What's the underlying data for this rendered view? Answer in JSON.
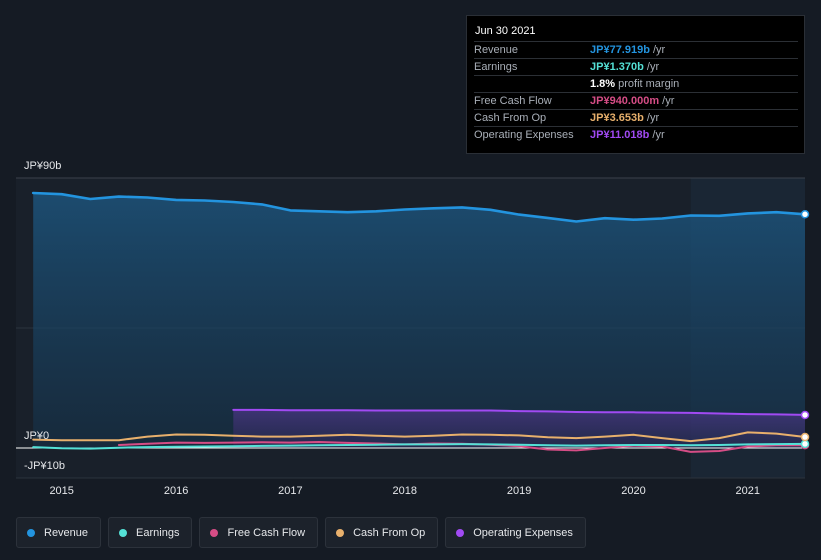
{
  "tooltip": {
    "date": "Jun 30 2021",
    "rows": [
      {
        "label": "Revenue",
        "value": "JP¥77.919b",
        "unit": " /yr",
        "color": "#2394df"
      },
      {
        "label": "Earnings",
        "value": "JP¥1.370b",
        "unit": " /yr",
        "color": "#54e1d6"
      },
      {
        "label": "",
        "value": "1.8%",
        "unit": " profit margin",
        "color": "#ffffff"
      },
      {
        "label": "Free Cash Flow",
        "value": "JP¥940.000m",
        "unit": " /yr",
        "color": "#d64d86"
      },
      {
        "label": "Cash From Op",
        "value": "JP¥3.653b",
        "unit": " /yr",
        "color": "#e8b06c"
      },
      {
        "label": "Operating Expenses",
        "value": "JP¥11.018b",
        "unit": " /yr",
        "color": "#a14af3"
      }
    ]
  },
  "axis": {
    "y_top_label": "JP¥90b",
    "y_zero_label": "JP¥0",
    "y_bottom_label": "-JP¥10b"
  },
  "legend": [
    {
      "label": "Revenue",
      "color": "#2394df"
    },
    {
      "label": "Earnings",
      "color": "#54e1d6"
    },
    {
      "label": "Free Cash Flow",
      "color": "#d64d86"
    },
    {
      "label": "Cash From Op",
      "color": "#e8b06c"
    },
    {
      "label": "Operating Expenses",
      "color": "#a14af3"
    }
  ],
  "chart_data": {
    "type": "area",
    "ylim": [
      -10,
      90
    ],
    "y_unit": "JP¥ billions",
    "xlim": [
      2014.6,
      2021.5
    ],
    "x_ticks": [
      "2015",
      "2016",
      "2017",
      "2018",
      "2019",
      "2020",
      "2021"
    ],
    "highlight_from": 2020.5,
    "series": [
      {
        "name": "Revenue",
        "color": "#2394df",
        "fill": true,
        "x": [
          2014.75,
          2015.0,
          2015.25,
          2015.5,
          2015.75,
          2016.0,
          2016.25,
          2016.5,
          2016.75,
          2017.0,
          2017.25,
          2017.5,
          2017.75,
          2018.0,
          2018.25,
          2018.5,
          2018.75,
          2019.0,
          2019.25,
          2019.5,
          2019.75,
          2020.0,
          2020.25,
          2020.5,
          2020.75,
          2021.0,
          2021.25,
          2021.5
        ],
        "y": [
          85.0,
          84.6,
          83.0,
          83.8,
          83.5,
          82.7,
          82.5,
          82.0,
          81.2,
          79.2,
          78.9,
          78.6,
          78.9,
          79.5,
          79.9,
          80.2,
          79.4,
          77.8,
          76.7,
          75.5,
          76.6,
          76.1,
          76.5,
          77.5,
          77.4,
          78.2,
          78.6,
          77.9
        ]
      },
      {
        "name": "Earnings",
        "color": "#54e1d6",
        "fill": false,
        "x": [
          2014.75,
          2015.0,
          2015.25,
          2015.5,
          2015.75,
          2016.0,
          2016.25,
          2016.5,
          2016.75,
          2017.0,
          2017.25,
          2017.5,
          2017.75,
          2018.0,
          2018.25,
          2018.5,
          2018.75,
          2019.0,
          2019.25,
          2019.5,
          2019.75,
          2020.0,
          2020.25,
          2020.5,
          2020.75,
          2021.0,
          2021.25,
          2021.5
        ],
        "y": [
          0.3,
          -0.1,
          -0.2,
          0.1,
          0.3,
          0.4,
          0.5,
          0.6,
          0.7,
          0.8,
          0.9,
          1.0,
          1.1,
          1.2,
          1.2,
          1.3,
          1.2,
          1.1,
          0.9,
          0.8,
          0.9,
          1.0,
          1.0,
          0.9,
          1.0,
          1.2,
          1.3,
          1.37
        ]
      },
      {
        "name": "Free Cash Flow",
        "color": "#d64d86",
        "fill": false,
        "x": [
          2015.5,
          2015.75,
          2016.0,
          2016.25,
          2016.5,
          2016.75,
          2017.0,
          2017.25,
          2017.5,
          2017.75,
          2018.0,
          2018.25,
          2018.5,
          2018.75,
          2019.0,
          2019.25,
          2019.5,
          2019.75,
          2020.0,
          2020.25,
          2020.5,
          2020.75,
          2021.0,
          2021.25,
          2021.5
        ],
        "y": [
          1.0,
          1.4,
          1.8,
          1.7,
          1.8,
          1.9,
          1.8,
          2.0,
          1.7,
          1.5,
          1.2,
          1.5,
          1.4,
          1.1,
          0.6,
          -0.5,
          -0.8,
          0.0,
          0.8,
          0.5,
          -1.3,
          -1.0,
          0.5,
          0.9,
          0.94
        ]
      },
      {
        "name": "Cash From Op",
        "color": "#e8b06c",
        "fill": false,
        "x": [
          2014.75,
          2015.0,
          2015.25,
          2015.5,
          2015.75,
          2016.0,
          2016.25,
          2016.5,
          2016.75,
          2017.0,
          2017.25,
          2017.5,
          2017.75,
          2018.0,
          2018.25,
          2018.5,
          2018.75,
          2019.0,
          2019.25,
          2019.5,
          2019.75,
          2020.0,
          2020.25,
          2020.5,
          2020.75,
          2021.0,
          2021.25,
          2021.5
        ],
        "y": [
          2.8,
          2.6,
          2.6,
          2.6,
          3.8,
          4.5,
          4.4,
          4.1,
          3.8,
          3.8,
          4.1,
          4.4,
          4.1,
          3.8,
          4.1,
          4.5,
          4.4,
          4.2,
          3.6,
          3.3,
          3.8,
          4.4,
          3.3,
          2.3,
          3.3,
          5.2,
          4.8,
          3.653
        ]
      },
      {
        "name": "Operating Expenses",
        "color": "#a14af3",
        "fill": true,
        "x": [
          2016.5,
          2016.75,
          2017.0,
          2017.25,
          2017.5,
          2017.75,
          2018.0,
          2018.25,
          2018.5,
          2018.75,
          2019.0,
          2019.25,
          2019.5,
          2019.75,
          2020.0,
          2020.25,
          2020.5,
          2020.75,
          2021.0,
          2021.25,
          2021.5
        ],
        "y": [
          12.7,
          12.7,
          12.6,
          12.6,
          12.6,
          12.5,
          12.5,
          12.5,
          12.5,
          12.5,
          12.3,
          12.2,
          12.0,
          11.9,
          11.9,
          11.8,
          11.7,
          11.5,
          11.3,
          11.2,
          11.018
        ]
      }
    ]
  }
}
